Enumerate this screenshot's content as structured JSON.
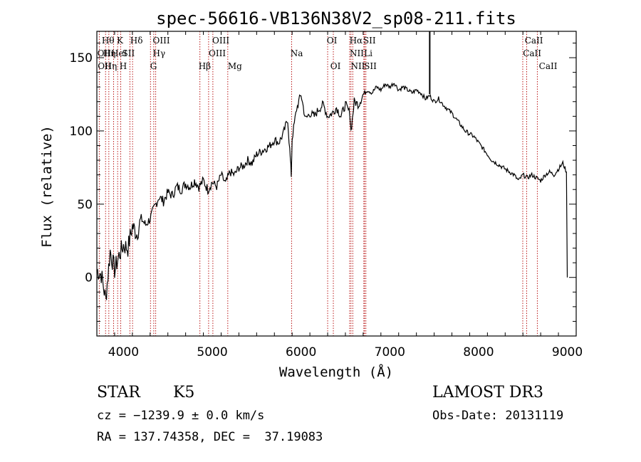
{
  "chart_data": {
    "type": "line",
    "title": "spec-56616-VB136N38V2_sp08-211.fits",
    "xlabel": "Wavelength (Å)",
    "ylabel": "Flux (relative)",
    "xlim": [
      3700,
      9100
    ],
    "ylim": [
      -40,
      168
    ],
    "xticks": [
      4000,
      5000,
      6000,
      7000,
      8000,
      9000
    ],
    "yticks": [
      0,
      50,
      100,
      150
    ],
    "series": [
      {
        "name": "flux",
        "x": [
          3700,
          3750,
          3800,
          3850,
          3900,
          3950,
          4000,
          4050,
          4100,
          4150,
          4200,
          4250,
          4300,
          4350,
          4400,
          4450,
          4500,
          4550,
          4600,
          4650,
          4700,
          4750,
          4800,
          4850,
          4900,
          4950,
          5000,
          5050,
          5100,
          5150,
          5200,
          5250,
          5300,
          5350,
          5400,
          5450,
          5500,
          5550,
          5600,
          5650,
          5700,
          5750,
          5800,
          5850,
          5880,
          5890,
          5900,
          5950,
          6000,
          6050,
          6100,
          6150,
          6200,
          6250,
          6300,
          6350,
          6400,
          6450,
          6500,
          6550,
          6563,
          6600,
          6650,
          6700,
          6750,
          6800,
          6850,
          6900,
          6950,
          7000,
          7050,
          7100,
          7150,
          7200,
          7250,
          7300,
          7350,
          7400,
          7450,
          7500,
          7550,
          7600,
          7650,
          7700,
          7750,
          7800,
          7850,
          7900,
          7950,
          8000,
          8050,
          8100,
          8150,
          8200,
          8250,
          8300,
          8350,
          8400,
          8450,
          8500,
          8550,
          8600,
          8650,
          8700,
          8750,
          8800,
          8850,
          8900,
          8950,
          8990,
          9000
        ],
        "y": [
          5,
          2,
          -15,
          18,
          5,
          15,
          22,
          20,
          35,
          30,
          40,
          36,
          40,
          48,
          55,
          52,
          58,
          56,
          62,
          60,
          64,
          62,
          66,
          62,
          66,
          60,
          65,
          62,
          70,
          64,
          72,
          70,
          75,
          76,
          80,
          78,
          84,
          86,
          88,
          90,
          94,
          92,
          98,
          108,
          80,
          70,
          95,
          115,
          125,
          108,
          112,
          110,
          115,
          118,
          110,
          112,
          116,
          110,
          118,
          112,
          100,
          120,
          118,
          125,
          128,
          126,
          130,
          128,
          132,
          130,
          133,
          128,
          130,
          128,
          126,
          128,
          126,
          122,
          124,
          120,
          122,
          118,
          115,
          112,
          108,
          104,
          100,
          98,
          96,
          92,
          88,
          84,
          80,
          78,
          76,
          74,
          72,
          70,
          66,
          70,
          68,
          70,
          68,
          66,
          70,
          72,
          70,
          74,
          78,
          72,
          0
        ]
      }
    ],
    "spikes": [
      {
        "x": 7450,
        "y": 168
      }
    ],
    "line_marks": [
      {
        "wavelength": 3727,
        "labels": [
          "OII",
          "OII"
        ]
      },
      {
        "wavelength": 3798,
        "labels": [
          "Hθ",
          "",
          "Hη"
        ]
      },
      {
        "wavelength": 3835,
        "labels": [
          "",
          "Hη"
        ]
      },
      {
        "wavelength": 3889,
        "labels": [
          "HeI"
        ]
      },
      {
        "wavelength": 3934,
        "labels": [
          "K"
        ]
      },
      {
        "wavelength": 3969,
        "labels": [
          "H"
        ]
      },
      {
        "wavelength": 4072,
        "labels": [
          "SII"
        ]
      },
      {
        "wavelength": 4102,
        "labels": [
          "Hδ"
        ]
      },
      {
        "wavelength": 4304,
        "labels": [
          "G"
        ]
      },
      {
        "wavelength": 4341,
        "labels": [
          "Hγ"
        ]
      },
      {
        "wavelength": 4363,
        "labels": [
          "OIII"
        ]
      },
      {
        "wavelength": 4861,
        "labels": [
          "Hβ"
        ]
      },
      {
        "wavelength": 4959,
        "labels": [
          "OIII"
        ]
      },
      {
        "wavelength": 5007,
        "labels": [
          "OIII"
        ]
      },
      {
        "wavelength": 5175,
        "labels": [
          "Mg"
        ]
      },
      {
        "wavelength": 5894,
        "labels": [
          "Na"
        ]
      },
      {
        "wavelength": 6300,
        "labels": [
          "OI"
        ]
      },
      {
        "wavelength": 6364,
        "labels": [
          "OI"
        ]
      },
      {
        "wavelength": 6548,
        "labels": [
          "NII"
        ]
      },
      {
        "wavelength": 6563,
        "labels": [
          "Hα"
        ]
      },
      {
        "wavelength": 6583,
        "labels": [
          "NII"
        ]
      },
      {
        "wavelength": 6708,
        "labels": [
          "Li"
        ]
      },
      {
        "wavelength": 6716,
        "labels": [
          "SII"
        ]
      },
      {
        "wavelength": 6731,
        "labels": [
          "SII"
        ]
      },
      {
        "wavelength": 8498,
        "labels": [
          "CaII"
        ]
      },
      {
        "wavelength": 8542,
        "labels": [
          "CaII"
        ]
      },
      {
        "wavelength": 8662,
        "labels": [
          "CaII"
        ]
      }
    ],
    "label_rows": [
      [
        {
          "text": "Hθ",
          "x": 3755
        },
        {
          "text": "K",
          "x": 3925
        },
        {
          "text": "Hδ",
          "x": 4075
        },
        {
          "text": "OIII",
          "x": 4330
        },
        {
          "text": "OIII",
          "x": 5000
        },
        {
          "text": "OI",
          "x": 6290
        },
        {
          "text": "Hα",
          "x": 6545
        },
        {
          "text": "SII",
          "x": 6700
        },
        {
          "text": "CaII",
          "x": 8520
        }
      ],
      [
        {
          "text": "OII",
          "x": 3705
        },
        {
          "text": "Hη",
          "x": 3770
        },
        {
          "text": "HeI",
          "x": 3860
        },
        {
          "text": "SII",
          "x": 3985
        },
        {
          "text": "Hγ",
          "x": 4330
        },
        {
          "text": "OIII",
          "x": 4960
        },
        {
          "text": "Na",
          "x": 5880
        },
        {
          "text": "NII",
          "x": 6548
        },
        {
          "text": "Li",
          "x": 6710
        },
        {
          "text": "CaII",
          "x": 8500
        }
      ],
      [
        {
          "text": "OII",
          "x": 3710
        },
        {
          "text": "Hη",
          "x": 3785
        },
        {
          "text": "H",
          "x": 3955
        },
        {
          "text": "G",
          "x": 4300
        },
        {
          "text": "Hβ",
          "x": 4845
        },
        {
          "text": "Mg",
          "x": 5175
        },
        {
          "text": "OI",
          "x": 6330
        },
        {
          "text": "NII",
          "x": 6560
        },
        {
          "text": "SII",
          "x": 6710
        },
        {
          "text": "CaII",
          "x": 8680
        }
      ]
    ]
  },
  "info": {
    "object_type": "STAR",
    "subclass": "K5",
    "survey": "LAMOST DR3",
    "cz": "cz = −1239.9 ± 0.0 km/s",
    "obs_date": "Obs-Date: 20131119",
    "coords": "RA = 137.74358, DEC =  37.19083"
  },
  "colors": {
    "axis": "#000000",
    "flux": "#000000",
    "line_marks": "#b30000",
    "background": "#ffffff"
  }
}
